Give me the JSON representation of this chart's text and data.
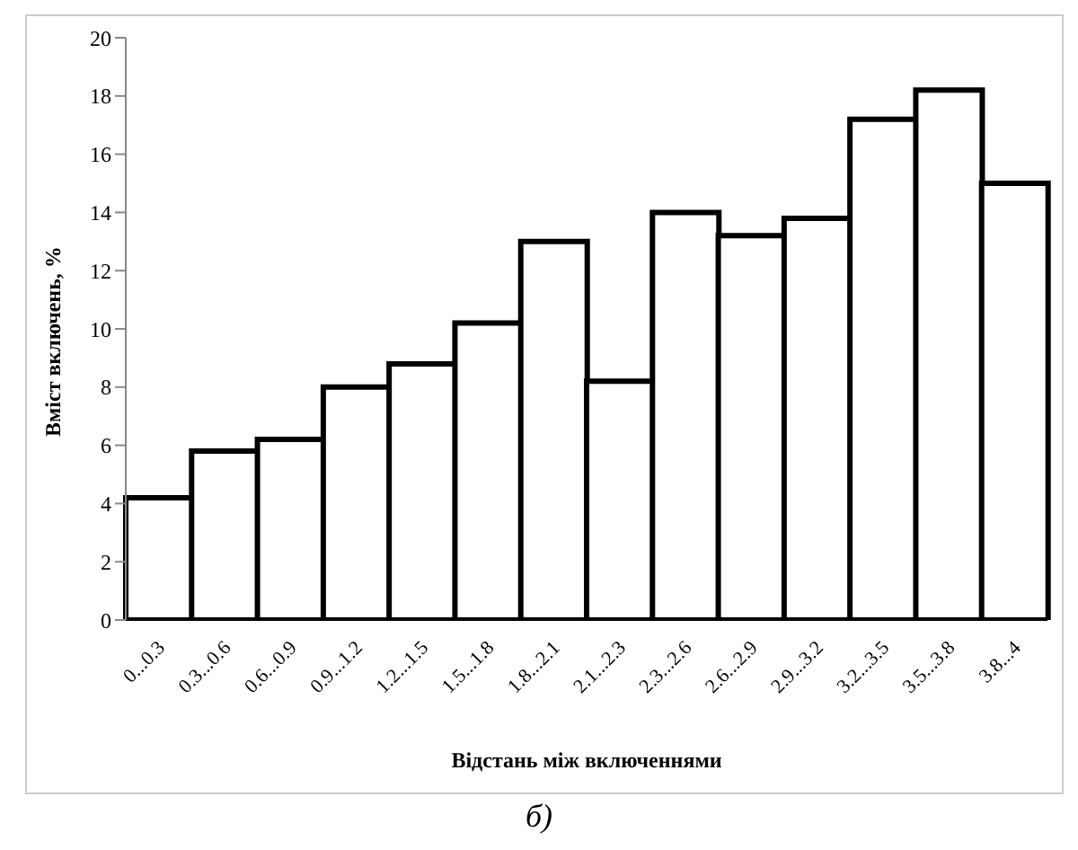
{
  "chart_data": {
    "type": "bar",
    "xlabel": "Відстань між включеннями",
    "ylabel": "Вміст включень, %",
    "categories": [
      "0...0.3",
      "0.3...0.6",
      "0.6...0.9",
      "0.9...1.2",
      "1.2...1.5",
      "1.5...1.8",
      "1.8...2.1",
      "2.1...2.3",
      "2.3...2.6",
      "2.6...2.9",
      "2.9...3.2",
      "3.2...3.5",
      "3.5...3.8",
      "3.8...4"
    ],
    "values": [
      4.2,
      5.8,
      6.2,
      8,
      8.8,
      10.2,
      13,
      8.2,
      14,
      13.2,
      13.8,
      17.2,
      18.2,
      15
    ],
    "color": "#ffffff",
    "ylim": [
      0,
      20
    ],
    "yticks": [
      0,
      2,
      4,
      6,
      8,
      10,
      12,
      14,
      16,
      18,
      20
    ],
    "grid": false,
    "legend": false,
    "annotations": [
      "б)"
    ]
  }
}
